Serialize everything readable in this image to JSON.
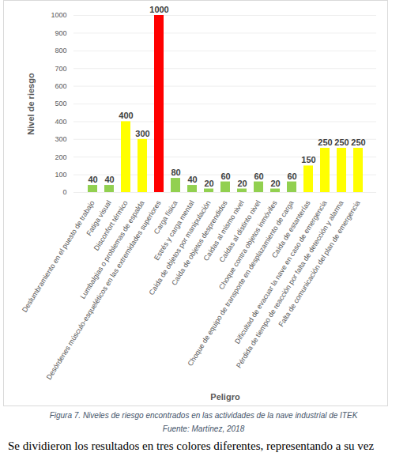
{
  "chart_data": {
    "type": "bar",
    "x_label": "Peligro",
    "y_label": "Nivel de riesgo",
    "categories": [
      "Deslumbramiento en el puesto de trabajo",
      "Fatiga visual",
      "Disconfort térmico",
      "Lumbalgias o problemas de espalda",
      "Desórdenes músculo-esqueléticos en las extremidades superiores",
      "Carga física",
      "Estrés y carga mental",
      "Caída de objetos por manipulación",
      "Caída de objetos desprendidos",
      "Caídas al mismo nivel",
      "Caídas al distinto nivel",
      "Choque contra objetos inmóviles",
      "Choque de equipo de transporte en desplazamiento de carga",
      "Caída de estanterías",
      "Dificultad de evacuar la nave en caso de emergencia",
      "Pérdida de tiempo de reacción por falta de detección y alarma",
      "Falta de comunicación del plan de emergencia"
    ],
    "values": [
      40,
      40,
      400,
      300,
      1000,
      80,
      40,
      20,
      60,
      20,
      60,
      20,
      60,
      150,
      250,
      250,
      250
    ],
    "colors": [
      "#92d050",
      "#92d050",
      "#ffff00",
      "#ffff00",
      "#ff0000",
      "#92d050",
      "#92d050",
      "#92d050",
      "#92d050",
      "#92d050",
      "#92d050",
      "#92d050",
      "#92d050",
      "#ffff00",
      "#ffff00",
      "#ffff00",
      "#ffff00"
    ],
    "ylim": [
      0,
      1000
    ],
    "yticks": [
      0,
      100,
      200,
      300,
      400,
      500,
      600,
      700,
      800,
      900,
      1000
    ],
    "grid": true,
    "data_labels": true,
    "caption": "Figura 7. Niveles de riesgo encontrados en las actividades de la nave industrial de ITEK",
    "source": "Fuente: Martínez, 2018",
    "annotations": [
      "Se dividieron los resultados en tres colores diferentes, representando a su vez"
    ]
  }
}
